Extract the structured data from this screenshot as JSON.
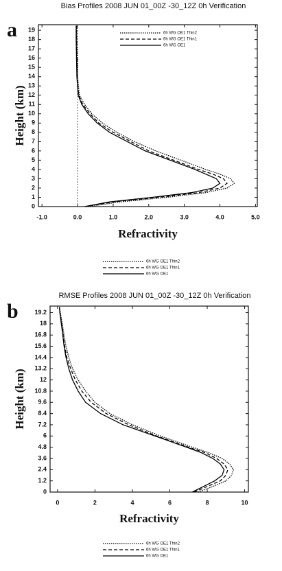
{
  "chart_data": [
    {
      "type": "line",
      "title": "Bias Profiles 2008 JUN 01_00Z -30_12Z 0h Verification",
      "panel": "a",
      "x_label": "Refractivity",
      "y_label": "Height (km)",
      "xlim": [
        -1.1,
        5.05
      ],
      "ylim": [
        0,
        19.6
      ],
      "xticks": [
        {
          "value": -1,
          "label": "-1.0"
        },
        {
          "value": 0,
          "label": "0.0"
        },
        {
          "value": 1,
          "label": "1.0"
        },
        {
          "value": 2,
          "label": "2.0"
        },
        {
          "value": 3,
          "label": "3.0"
        },
        {
          "value": 4,
          "label": "4.0"
        },
        {
          "value": 5,
          "label": "5.0"
        }
      ],
      "yticks": [
        0,
        1,
        2,
        3,
        4,
        5,
        6,
        7,
        8,
        9,
        10,
        11,
        12,
        13,
        14,
        15,
        16,
        17,
        18,
        19
      ],
      "y": [
        0,
        0.5,
        1,
        1.5,
        2,
        2.5,
        3,
        3.5,
        4,
        5,
        6,
        7,
        8,
        9,
        10,
        11,
        12,
        14,
        16,
        18,
        19.5
      ],
      "legend": "upper right",
      "legend_below": true,
      "zero_line": true,
      "series": [
        {
          "name": "6h WG OE1 Thin2",
          "color": "#000000",
          "dash": "dotted",
          "values": [
            0.3,
            1.2,
            2.5,
            3.6,
            4.2,
            4.4,
            4.3,
            4.0,
            3.6,
            2.9,
            2.2,
            1.6,
            1.1,
            0.7,
            0.4,
            0.2,
            0.05,
            0.0,
            0.0,
            -0.02,
            -0.03
          ]
        },
        {
          "name": "6h WG OE1 Thin1",
          "color": "#000000",
          "dash": "dashed",
          "values": [
            0.2,
            1.0,
            2.3,
            3.4,
            4.0,
            4.2,
            4.1,
            3.8,
            3.4,
            2.7,
            2.0,
            1.5,
            1.0,
            0.6,
            0.35,
            0.15,
            0.03,
            -0.01,
            -0.02,
            -0.03,
            -0.03
          ]
        },
        {
          "name": "6h WG OE1",
          "color": "#000000",
          "dash": "solid",
          "values": [
            0.2,
            0.9,
            2.1,
            3.2,
            3.8,
            4.0,
            3.9,
            3.6,
            3.3,
            2.6,
            1.9,
            1.4,
            0.9,
            0.55,
            0.3,
            0.12,
            0.02,
            -0.02,
            -0.03,
            -0.04,
            -0.04
          ]
        }
      ]
    },
    {
      "type": "line",
      "title": "RMSE Profiles 2008 JUN 01_00Z -30_12Z 0h Verification",
      "panel": "b",
      "x_label": "Refractivity",
      "y_label": "Height (km)",
      "xlim": [
        -0.4,
        10.2
      ],
      "ylim": [
        0,
        19.9
      ],
      "xticks": [
        0,
        2,
        4,
        6,
        8,
        10
      ],
      "yticks": [
        0,
        1.2,
        2.4,
        3.6,
        4.8,
        6,
        7.2,
        8.4,
        9.6,
        10.8,
        12,
        13.2,
        14.4,
        15.6,
        16.8,
        18,
        19.2
      ],
      "y": [
        0,
        0.6,
        1.2,
        1.8,
        2.4,
        3,
        3.6,
        4.2,
        4.8,
        6,
        7.2,
        8.4,
        9.6,
        10.8,
        12,
        13.2,
        14.4,
        15.6,
        16.8,
        18,
        19.2,
        19.8
      ],
      "legend_below": true,
      "series": [
        {
          "name": "6h WG OE1 Thin2",
          "color": "#000000",
          "dash": "dotted",
          "values": [
            7.5,
            8.3,
            9.0,
            9.3,
            9.4,
            9.2,
            8.8,
            8.1,
            7.2,
            5.5,
            4.0,
            2.8,
            2.0,
            1.5,
            1.1,
            0.8,
            0.6,
            0.45,
            0.35,
            0.25,
            0.15,
            0.1
          ]
        },
        {
          "name": "6h WG OE1 Thin1",
          "color": "#000000",
          "dash": "dashed",
          "values": [
            7.3,
            8.0,
            8.7,
            9.0,
            9.1,
            8.9,
            8.5,
            7.9,
            7.0,
            5.3,
            3.8,
            2.6,
            1.8,
            1.3,
            0.95,
            0.7,
            0.5,
            0.38,
            0.3,
            0.22,
            0.13,
            0.1
          ]
        },
        {
          "name": "6h WG OE1",
          "color": "#000000",
          "dash": "solid",
          "values": [
            7.2,
            7.8,
            8.4,
            8.8,
            8.9,
            8.7,
            8.3,
            7.7,
            6.9,
            5.2,
            3.5,
            2.3,
            1.5,
            1.1,
            0.8,
            0.6,
            0.45,
            0.35,
            0.28,
            0.2,
            0.12,
            0.1
          ]
        }
      ]
    }
  ]
}
